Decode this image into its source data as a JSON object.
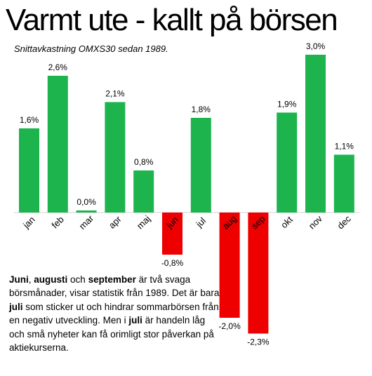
{
  "header": {
    "title": "Varmt ute - kallt på börsen",
    "subtitle": "Snittavkastning OMXS30 sedan 1989."
  },
  "note": {
    "parts": [
      {
        "text": "Juni",
        "bold": true
      },
      {
        "text": ", ",
        "bold": false
      },
      {
        "text": "augusti",
        "bold": true
      },
      {
        "text": " och ",
        "bold": false
      },
      {
        "text": "september",
        "bold": true
      },
      {
        "text": " är två svaga börsmånader, visar statistik från 1989. Det är bara ",
        "bold": false
      },
      {
        "text": "juli",
        "bold": true
      },
      {
        "text": " som sticker ut och hindrar sommarbörsen från en negativ utveckling. Men i ",
        "bold": false
      },
      {
        "text": "juli",
        "bold": true
      },
      {
        "text": " är handeln låg och små nyheter kan få orimligt stor påverkan på aktiekurserna.",
        "bold": false
      }
    ]
  },
  "colors": {
    "positive": "#1db44e",
    "negative": "#ee0000",
    "baseline": "#d0d0d0"
  },
  "chart_data": {
    "type": "bar",
    "title": "Varmt ute - kallt på börsen",
    "subtitle": "Snittavkastning OMXS30 sedan 1989.",
    "categories": [
      "jan",
      "feb",
      "mar",
      "apr",
      "maj",
      "jun",
      "jul",
      "aug",
      "sep",
      "okt",
      "nov",
      "dec"
    ],
    "values": [
      1.6,
      2.6,
      0.0,
      2.1,
      0.8,
      -0.8,
      1.8,
      -2.0,
      -2.3,
      1.9,
      3.0,
      1.1
    ],
    "labels": [
      "1,6%",
      "2,6%",
      "0,0%",
      "2,1%",
      "0,8%",
      "-0,8%",
      "1,8%",
      "-2,0%",
      "-2,3%",
      "1,9%",
      "3,0%",
      "1,1%"
    ],
    "xlabel": "",
    "ylabel": "",
    "ylim": [
      -2.3,
      3.0
    ],
    "grid": false,
    "legend": "none"
  }
}
